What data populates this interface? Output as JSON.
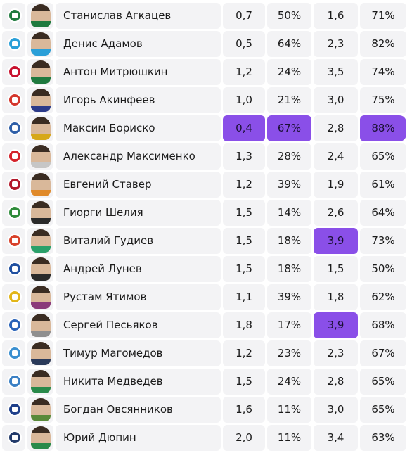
{
  "rows": [
    {
      "club_icon": "krasnodar-logo-icon",
      "club_color": "#1f7a3f",
      "shirt_color": "#1f7a3f",
      "name": "Станислав Агкацев",
      "v1": "0,7",
      "v2": "50%",
      "v3": "1,6",
      "v4": "71%"
    },
    {
      "club_icon": "zenit-logo-icon",
      "club_color": "#2a9fd8",
      "shirt_color": "#2a9fd8",
      "name": "Денис Адамов",
      "v1": "0,5",
      "v2": "64%",
      "v3": "2,3",
      "v4": "82%"
    },
    {
      "club_icon": "lokomotiv-logo-icon",
      "club_color": "#c8102e",
      "shirt_color": "#1f7a3f",
      "name": "Антон Митрюшкин",
      "v1": "1,2",
      "v2": "24%",
      "v3": "3,5",
      "v4": "74%"
    },
    {
      "club_icon": "cska-logo-icon",
      "club_color": "#d4352b",
      "shirt_color": "#2b3a8a",
      "name": "Игорь Акинфеев",
      "v1": "1,0",
      "v2": "21%",
      "v3": "3,0",
      "v4": "75%"
    },
    {
      "club_icon": "baltika-logo-icon",
      "club_color": "#2f5fa8",
      "shirt_color": "#d6a81a",
      "name": "Максим Бориско",
      "v1": "0,4",
      "v2": "67%",
      "v3": "2,8",
      "v4": "88%",
      "hl": [
        "v1",
        "v2",
        "v4"
      ]
    },
    {
      "club_icon": "spartak-logo-icon",
      "club_color": "#d4222b",
      "shirt_color": "#c6c6c6",
      "name": "Александр Максименко",
      "v1": "1,3",
      "v2": "28%",
      "v3": "2,4",
      "v4": "65%"
    },
    {
      "club_icon": "rubin-logo-icon",
      "club_color": "#b2182b",
      "shirt_color": "#e08a2a",
      "name": "Евгений Ставер",
      "v1": "1,2",
      "v2": "39%",
      "v3": "1,9",
      "v4": "61%"
    },
    {
      "club_icon": "akhmat-logo-icon",
      "club_color": "#2e8b3a",
      "shirt_color": "#2a2a2a",
      "name": "Гиорги Шелия",
      "v1": "1,5",
      "v2": "14%",
      "v3": "2,6",
      "v4": "64%"
    },
    {
      "club_icon": "fakel-logo-icon",
      "club_color": "#d8412a",
      "shirt_color": "#2aa06a",
      "name": "Виталий Гудиев",
      "v1": "1,5",
      "v2": "18%",
      "v3": "3,9",
      "v4": "73%",
      "hl": [
        "v3"
      ]
    },
    {
      "club_icon": "dynamo-logo-icon",
      "club_color": "#1f4fa0",
      "shirt_color": "#2a2a2a",
      "name": "Андрей Лунев",
      "v1": "1,5",
      "v2": "18%",
      "v3": "1,5",
      "v4": "50%"
    },
    {
      "club_icon": "rostov-logo-icon",
      "club_color": "#e2b619",
      "shirt_color": "#8a3a7a",
      "name": "Рустам Ятимов",
      "v1": "1,1",
      "v2": "39%",
      "v3": "1,8",
      "v4": "62%"
    },
    {
      "club_icon": "krylia-sovetov-logo-icon",
      "club_color": "#2a63b8",
      "shirt_color": "#8f8f8f",
      "name": "Сергей Песьяков",
      "v1": "1,8",
      "v2": "17%",
      "v3": "3,9",
      "v4": "68%",
      "hl": [
        "v3"
      ]
    },
    {
      "club_icon": "dynamo-makhachkala-logo-icon",
      "club_color": "#3a8fd0",
      "shirt_color": "#2a3a5a",
      "name": "Тимур Магомедов",
      "v1": "1,2",
      "v2": "23%",
      "v3": "2,3",
      "v4": "67%"
    },
    {
      "club_icon": "nizhny-novgorod-logo-icon",
      "club_color": "#3a7fc4",
      "shirt_color": "#2a8a4a",
      "name": "Никита Медведев",
      "v1": "1,5",
      "v2": "24%",
      "v3": "2,8",
      "v4": "65%"
    },
    {
      "club_icon": "orenburg-logo-icon",
      "club_color": "#1e3f8a",
      "shirt_color": "#5a8a3a",
      "name": "Богдан Овсянников",
      "v1": "1,6",
      "v2": "11%",
      "v3": "3,0",
      "v4": "65%"
    },
    {
      "club_icon": "khimki-logo-icon",
      "club_color": "#223a6a",
      "shirt_color": "#2a8a4a",
      "name": "Юрий Дюпин",
      "v1": "2,0",
      "v2": "11%",
      "v3": "3,4",
      "v4": "63%"
    }
  ]
}
